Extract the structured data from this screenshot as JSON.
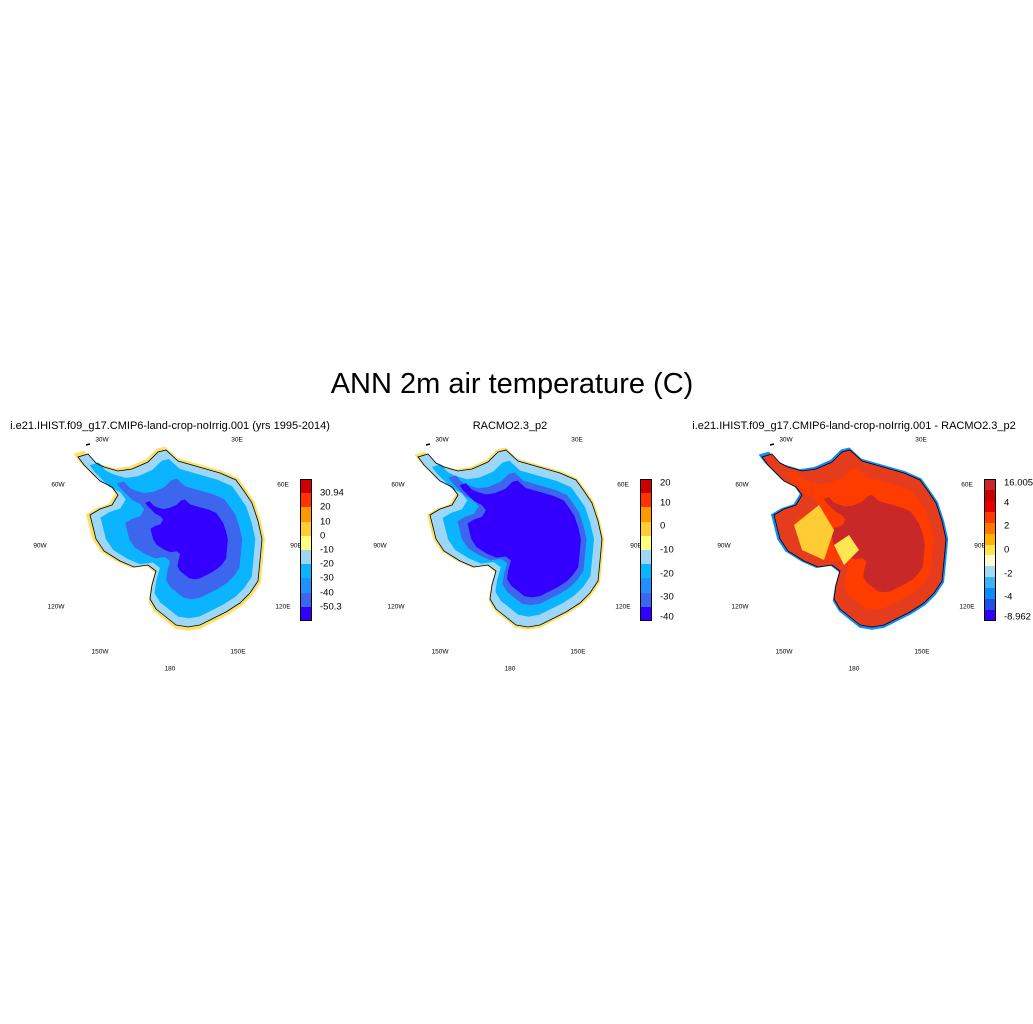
{
  "figure": {
    "title": "ANN 2m air temperature (C)"
  },
  "panels": [
    {
      "title": "i.e21.IHIST.f09_g17.CMIP6-land-crop-noIrrig.001 (yrs 1995-2014)",
      "map_type": "model",
      "lon_labels": [
        "30W",
        "30E",
        "60W",
        "60E",
        "90W",
        "90E",
        "120W",
        "120E",
        "150W",
        "150E",
        "180"
      ],
      "colorbar": {
        "colors": [
          "#3300ff",
          "#3d66ee",
          "#1e90ff",
          "#0ab4ff",
          "#9ed6f5",
          "#ffff80",
          "#ffcc33",
          "#ff9900",
          "#ff3300",
          "#cc0000"
        ],
        "labels": [
          "-50.3",
          "-40",
          "-30",
          "-20",
          "-10",
          "0",
          "10",
          "20",
          "30.94"
        ]
      }
    },
    {
      "title": "RACMO2.3_p2",
      "map_type": "obs",
      "lon_labels": [
        "30W",
        "30E",
        "60W",
        "60E",
        "90W",
        "90E",
        "120W",
        "120E",
        "150W",
        "150E",
        "180"
      ],
      "colorbar": {
        "colors": [
          "#3300ff",
          "#3d66ee",
          "#1e90ff",
          "#0ab4ff",
          "#9ed6f5",
          "#ffff80",
          "#ffcc33",
          "#ff9900",
          "#ff3300",
          "#cc0000"
        ],
        "labels": [
          "-40",
          "-30",
          "-20",
          "-10",
          "0",
          "10",
          "20"
        ]
      }
    },
    {
      "title": "i.e21.IHIST.f09_g17.CMIP6-land-crop-noIrrig.001 - RACMO2.3_p2",
      "map_type": "diff",
      "lon_labels": [
        "30W",
        "30E",
        "60W",
        "60E",
        "90W",
        "90E",
        "120W",
        "120E",
        "150W",
        "150E",
        "180"
      ],
      "colorbar": {
        "colors": [
          "#3300ff",
          "#1e50e6",
          "#0a8cff",
          "#3cb4f0",
          "#a0dcf5",
          "#ffffd2",
          "#ffe650",
          "#ffb400",
          "#ff7800",
          "#ff3c00",
          "#e60000",
          "#c80000",
          "#c82828"
        ],
        "labels": [
          "-8.962",
          "-4",
          "-2",
          "0",
          "2",
          "4",
          "16.005"
        ]
      }
    }
  ]
}
